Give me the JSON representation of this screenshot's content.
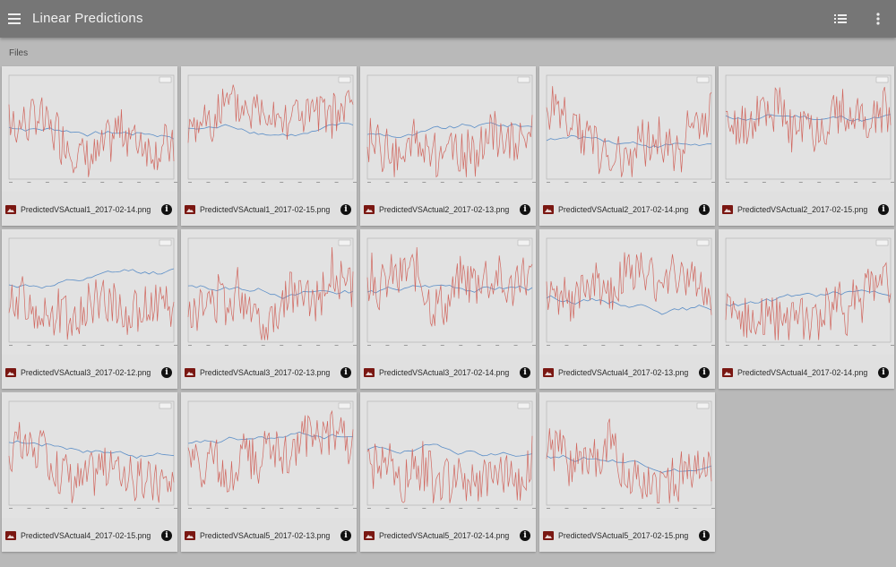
{
  "app": {
    "title": "Linear Predictions",
    "icons": {
      "menu": "menu-icon",
      "list_view": "list-view-icon",
      "more": "more-vert-icon"
    }
  },
  "section_label": "Files",
  "colors": {
    "topbar": "#767676",
    "background": "#b9b9b9",
    "card": "#e0e0e0",
    "actual_series": "#d0675f",
    "predicted_series": "#5b8ec7",
    "file_icon": "#7a1712"
  },
  "card_icons": {
    "file": "image-file-icon",
    "info": "info-icon",
    "info_glyph": "i"
  },
  "files": [
    {
      "name": "PredictedVSActual1_2017-02-14.png"
    },
    {
      "name": "PredictedVSActual1_2017-02-15.png"
    },
    {
      "name": "PredictedVSActual2_2017-02-13.png"
    },
    {
      "name": "PredictedVSActual2_2017-02-14.png"
    },
    {
      "name": "PredictedVSActual2_2017-02-15.png"
    },
    {
      "name": "PredictedVSActual3_2017-02-12.png"
    },
    {
      "name": "PredictedVSActual3_2017-02-13.png"
    },
    {
      "name": "PredictedVSActual3_2017-02-14.png"
    },
    {
      "name": "PredictedVSActual4_2017-02-13.png"
    },
    {
      "name": "PredictedVSActual4_2017-02-14.png"
    },
    {
      "name": "PredictedVSActual4_2017-02-15.png"
    },
    {
      "name": "PredictedVSActual5_2017-02-13.png"
    },
    {
      "name": "PredictedVSActual5_2017-02-14.png"
    },
    {
      "name": "PredictedVSActual5_2017-02-15.png"
    }
  ]
}
